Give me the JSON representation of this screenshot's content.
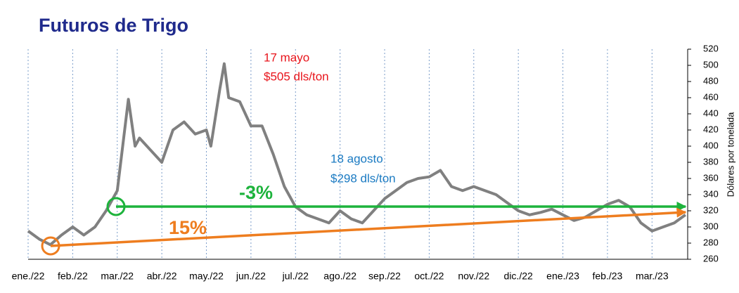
{
  "chart_data": {
    "type": "line",
    "title": "Futuros de Trigo",
    "y_label": "Dólares por tonelada",
    "x": [
      0,
      0.25,
      0.5,
      0.75,
      1,
      1.25,
      1.5,
      1.75,
      2,
      2.1,
      2.25,
      2.4,
      2.5,
      2.75,
      3,
      3.25,
      3.5,
      3.75,
      4,
      4.1,
      4.3,
      4.4,
      4.5,
      4.75,
      5,
      5.25,
      5.5,
      5.75,
      6,
      6.25,
      6.5,
      6.75,
      7,
      7.25,
      7.5,
      7.75,
      8,
      8.25,
      8.5,
      8.75,
      9,
      9.25,
      9.5,
      9.75,
      10,
      10.25,
      10.5,
      10.75,
      11,
      11.25,
      11.5,
      11.75,
      12,
      12.25,
      12.5,
      12.75,
      13,
      13.25,
      13.5,
      13.75,
      14,
      14.25,
      14.5,
      14.75
    ],
    "series": [
      {
        "name": "Futuros de Trigo",
        "color": "#808080",
        "values": [
          295,
          285,
          278,
          290,
          300,
          290,
          300,
          320,
          345,
          390,
          458,
          400,
          410,
          395,
          380,
          420,
          430,
          415,
          420,
          400,
          470,
          502,
          460,
          455,
          425,
          425,
          390,
          350,
          325,
          315,
          310,
          305,
          320,
          310,
          305,
          320,
          335,
          345,
          355,
          360,
          362,
          370,
          350,
          345,
          350,
          345,
          340,
          330,
          320,
          315,
          318,
          322,
          315,
          308,
          312,
          320,
          328,
          333,
          325,
          305,
          295,
          300,
          305,
          315
        ]
      }
    ],
    "xlim": [
      0,
      14.8
    ],
    "xticks": [
      {
        "value": 0,
        "label": "ene./22"
      },
      {
        "value": 1,
        "label": "feb./22"
      },
      {
        "value": 2,
        "label": "mar./22"
      },
      {
        "value": 3,
        "label": "abr./22"
      },
      {
        "value": 4,
        "label": "may./22"
      },
      {
        "value": 5,
        "label": "jun./22"
      },
      {
        "value": 6,
        "label": "jul./22"
      },
      {
        "value": 7,
        "label": "ago./22"
      },
      {
        "value": 8,
        "label": "sep./22"
      },
      {
        "value": 9,
        "label": "oct./22"
      },
      {
        "value": 10,
        "label": "nov./22"
      },
      {
        "value": 11,
        "label": "dic./22"
      },
      {
        "value": 12,
        "label": "ene./23"
      },
      {
        "value": 13,
        "label": "feb./23"
      },
      {
        "value": 14,
        "label": "mar./23"
      }
    ],
    "ylim": [
      260,
      520
    ],
    "yticks": [
      260,
      280,
      300,
      320,
      340,
      360,
      380,
      400,
      420,
      440,
      460,
      480,
      500,
      520
    ],
    "grid": true,
    "annotations": {
      "peak_date": "17 mayo",
      "peak_price": "$505 dls/ton",
      "ref_date": "18 agosto",
      "ref_price": "$298 dls/ton",
      "change_short": "-3%",
      "change_long": "15%"
    }
  }
}
